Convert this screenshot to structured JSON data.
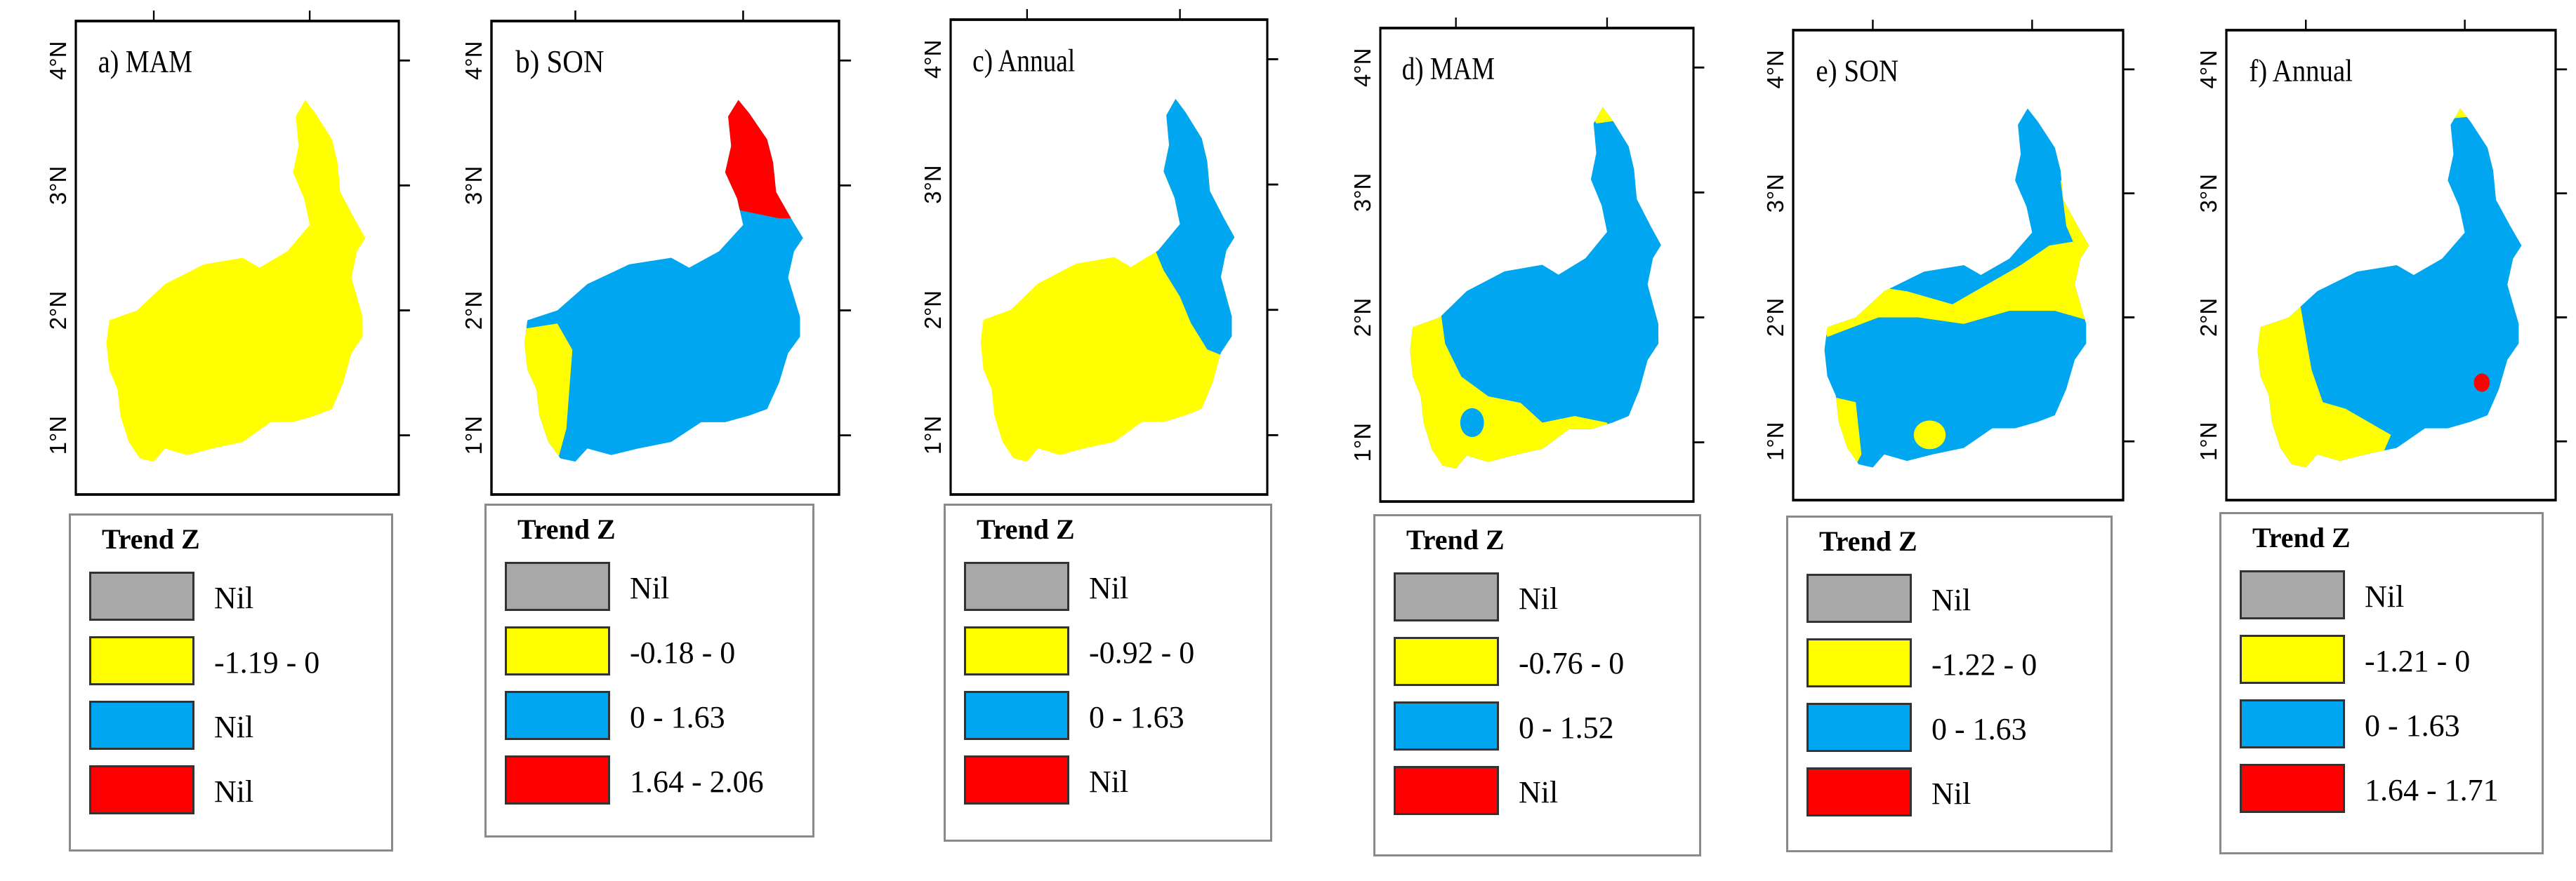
{
  "figure": {
    "legend_title": "Trend Z",
    "latitude_ticks": [
      "4°N",
      "3°N",
      "2°N",
      "1°N"
    ],
    "colors": {
      "nil": "#a8a8a8",
      "negative": "#ffff00",
      "positive": "#00a6f0",
      "significant": "#ff0000",
      "frame": "#000000"
    },
    "panels": [
      {
        "label": "a) MAM",
        "legend": [
          "Nil",
          "-1.19 - 0",
          "Nil",
          "Nil"
        ]
      },
      {
        "label": "b) SON",
        "legend": [
          "Nil",
          "-0.18 - 0",
          "0 - 1.63",
          "1.64 - 2.06"
        ]
      },
      {
        "label": "c) Annual",
        "legend": [
          "Nil",
          "-0.92 - 0",
          "0 - 1.63",
          "Nil"
        ]
      },
      {
        "label": "d) MAM",
        "legend": [
          "Nil",
          "-0.76 - 0",
          "0 - 1.52",
          "Nil"
        ]
      },
      {
        "label": "e) SON",
        "legend": [
          "Nil",
          "-1.22 - 0",
          "0 - 1.63",
          "Nil"
        ]
      },
      {
        "label": "f) Annual",
        "legend": [
          "Nil",
          "-1.21 - 0",
          "0 - 1.63",
          "1.64 - 1.71"
        ]
      }
    ]
  }
}
